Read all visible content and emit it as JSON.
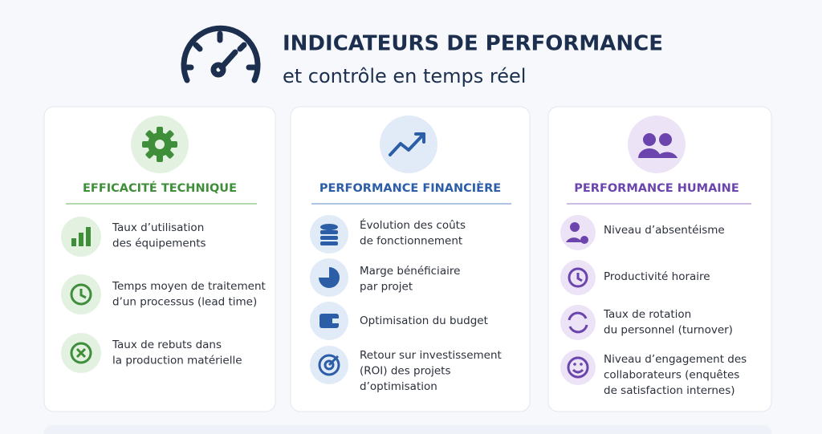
{
  "header": {
    "title": "INDICATEURS DE PERFORMANCE",
    "subtitle": "et contrôle en temps réel"
  },
  "columns": [
    {
      "title": "EFFICACITÉ TECHNIQUE",
      "items": [
        {
          "lines": [
            "Taux d’utilisation",
            "des équipements"
          ]
        },
        {
          "lines": [
            "Temps moyen de traitement",
            "d’un processus (lead time)"
          ]
        },
        {
          "lines": [
            "Taux de rebuts dans",
            "la production matérielle"
          ]
        }
      ]
    },
    {
      "title": "PERFORMANCE FINANCIÈRE",
      "items": [
        {
          "lines": [
            "Évolution des coûts",
            "de fonctionnement"
          ]
        },
        {
          "lines": [
            "Marge bénéficiaire",
            "par projet"
          ]
        },
        {
          "lines": [
            "Optimisation du budget"
          ]
        },
        {
          "lines": [
            "Retour sur investissement",
            "(ROI) des projets",
            "d’optimisation"
          ]
        }
      ]
    },
    {
      "title": "PERFORMANCE HUMAINE",
      "items": [
        {
          "lines": [
            "Niveau d’absentéisme"
          ]
        },
        {
          "lines": [
            "Productivité horaire"
          ]
        },
        {
          "lines": [
            "Taux de rotation",
            "du personnel (turnover)"
          ]
        },
        {
          "lines": [
            "Niveau d’engagement des",
            "collaborateurs (enquêtes",
            "de satisfaction internes)"
          ]
        }
      ]
    }
  ]
}
